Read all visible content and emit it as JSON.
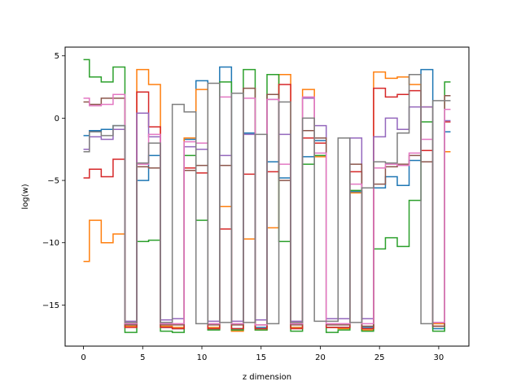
{
  "chart_data": {
    "type": "line",
    "drawstyle": "steps-mid",
    "xlabel": "z dimension",
    "ylabel": "log(w)",
    "xlim": [
      -1.55,
      32.55
    ],
    "ylim": [
      -18.3,
      5.7
    ],
    "xticks": [
      0,
      5,
      10,
      15,
      20,
      25,
      30
    ],
    "yticks": [
      5,
      0,
      -5,
      -10,
      -15
    ],
    "ytick_labels": [
      "5",
      "0",
      "−5",
      "−10",
      "−15"
    ],
    "grid": false,
    "x": [
      0,
      1,
      2,
      3,
      4,
      5,
      6,
      7,
      8,
      9,
      10,
      11,
      12,
      13,
      14,
      15,
      16,
      17,
      18,
      19,
      20,
      21,
      22,
      23,
      24,
      25,
      26,
      27,
      28,
      29,
      30,
      31
    ],
    "series": [
      {
        "color": "#1f77b4",
        "values": [
          -1.4,
          -1.0,
          -0.9,
          -0.6,
          -16.6,
          -5.0,
          -3.0,
          -16.8,
          -16.9,
          -1.7,
          3.0,
          -16.9,
          4.1,
          -16.9,
          -1.2,
          -16.8,
          -3.5,
          -4.8,
          -16.8,
          -3.1,
          -1.8,
          -16.8,
          -16.8,
          -5.9,
          -16.8,
          -5.6,
          -4.7,
          -5.4,
          -3.4,
          3.9,
          -16.9,
          -1.1
        ]
      },
      {
        "color": "#ff7f0e",
        "values": [
          -11.5,
          -8.2,
          -10.0,
          -9.3,
          -16.7,
          3.9,
          2.7,
          -16.7,
          -16.8,
          -1.6,
          2.3,
          -16.8,
          -7.1,
          -17.1,
          -9.7,
          -17.0,
          -8.8,
          3.5,
          -16.8,
          2.3,
          -3.1,
          -16.8,
          -16.9,
          -6.0,
          -17.0,
          3.7,
          3.2,
          3.3,
          2.7,
          0.9,
          -16.5,
          -2.7
        ]
      },
      {
        "color": "#2ca02c",
        "values": [
          4.7,
          3.3,
          2.9,
          4.1,
          -17.2,
          -9.9,
          -9.8,
          -17.1,
          -17.2,
          -3.0,
          -8.2,
          -17.0,
          2.9,
          -17.0,
          3.9,
          -17.0,
          3.5,
          -9.9,
          -17.1,
          -3.7,
          -3.0,
          -17.2,
          -17.0,
          -5.8,
          -17.1,
          -10.5,
          -9.6,
          -10.3,
          -6.6,
          -0.3,
          -17.1,
          2.9
        ]
      },
      {
        "color": "#d62728",
        "values": [
          -4.8,
          -4.1,
          -4.7,
          -3.3,
          -16.8,
          2.1,
          -0.7,
          -16.8,
          -16.9,
          -4.0,
          -4.4,
          -16.9,
          -8.9,
          -16.9,
          -4.5,
          -16.9,
          -4.3,
          2.7,
          -16.9,
          -1.6,
          -2.0,
          -16.8,
          -16.8,
          -4.3,
          -16.9,
          2.4,
          1.7,
          1.9,
          2.2,
          -2.6,
          -16.7,
          -0.3
        ]
      },
      {
        "color": "#9467bd",
        "values": [
          -2.5,
          -1.5,
          -1.7,
          -0.9,
          -16.3,
          0.4,
          -1.5,
          -16.2,
          -16.1,
          -2.3,
          -2.5,
          -16.3,
          -3.0,
          -16.3,
          -1.3,
          -16.2,
          1.5,
          -1.3,
          -16.3,
          1.6,
          -0.6,
          -16.1,
          -16.1,
          -1.6,
          -16.1,
          -1.5,
          0.0,
          -0.9,
          0.9,
          0.9,
          -16.4,
          -0.2
        ]
      },
      {
        "color": "#8c564b",
        "values": [
          1.3,
          1.1,
          1.6,
          1.6,
          -16.6,
          -3.9,
          -4.0,
          -16.6,
          -16.6,
          -4.2,
          -3.8,
          -16.6,
          -3.8,
          -16.6,
          2.4,
          -16.6,
          1.9,
          -5.0,
          -16.6,
          -1.0,
          -1.6,
          -16.6,
          -16.6,
          -3.7,
          -16.7,
          -5.3,
          -3.9,
          -3.7,
          -3.0,
          -3.5,
          -16.7,
          1.8
        ]
      },
      {
        "color": "#e377c2",
        "values": [
          1.6,
          1.0,
          1.1,
          1.9,
          -16.5,
          -3.7,
          -1.3,
          -16.5,
          -16.5,
          -1.9,
          -2.0,
          -16.5,
          1.7,
          -16.5,
          1.6,
          -16.6,
          1.5,
          -3.7,
          -16.5,
          1.7,
          -2.8,
          -16.5,
          -16.5,
          -5.3,
          -16.5,
          -4.0,
          -3.7,
          -3.8,
          -2.8,
          -1.7,
          -16.4,
          0.7
        ]
      },
      {
        "color": "#7f7f7f",
        "values": [
          -2.7,
          -1.1,
          -1.4,
          -0.6,
          -16.4,
          -3.6,
          -2.0,
          -16.4,
          1.1,
          0.5,
          -16.5,
          2.8,
          -16.4,
          2.0,
          -16.4,
          -1.3,
          -16.5,
          1.3,
          -16.4,
          0.0,
          -16.3,
          -16.3,
          -1.6,
          -16.4,
          -5.6,
          -3.5,
          -3.6,
          -1.2,
          3.5,
          -16.5,
          1.4,
          1.4
        ]
      }
    ]
  }
}
